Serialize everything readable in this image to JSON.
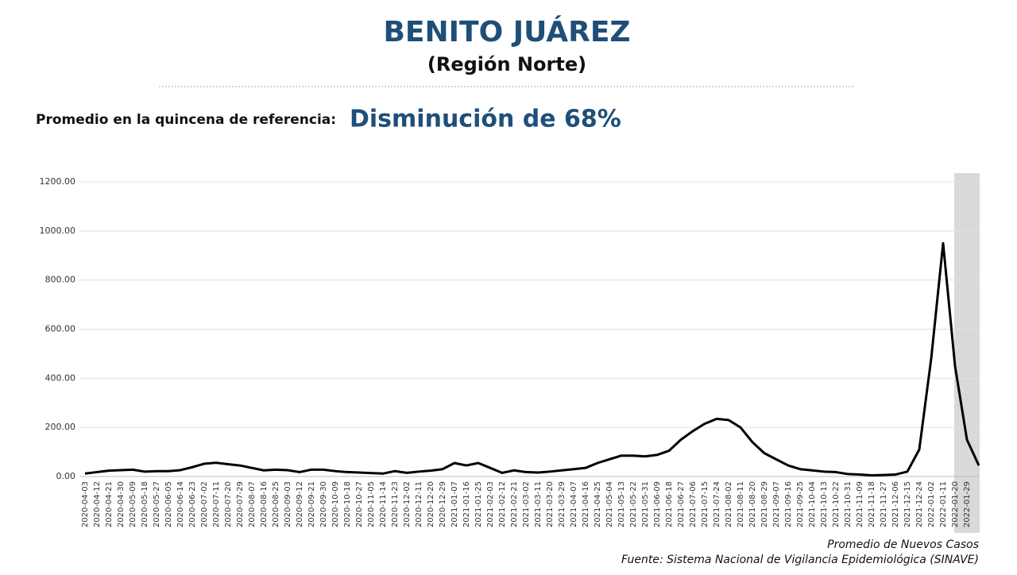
{
  "chart_data": {
    "type": "line",
    "title": "BENITO JUÁREZ",
    "subtitle": "(Región Norte)",
    "reference_label": "Promedio en la quincena de referencia:",
    "headline": "Disminución de 68%",
    "legend_label": "Promedio de Nuevos Casos",
    "source": "Fuente: Sistema Nacional de Vigilancia Epidemiológica (SINAVE)",
    "categories": [
      "2020-04-03",
      "2020-04-12",
      "2020-04-21",
      "2020-04-30",
      "2020-05-09",
      "2020-05-18",
      "2020-05-27",
      "2020-06-05",
      "2020-06-14",
      "2020-06-23",
      "2020-07-02",
      "2020-07-11",
      "2020-07-20",
      "2020-07-29",
      "2020-08-07",
      "2020-08-16",
      "2020-08-25",
      "2020-09-03",
      "2020-09-12",
      "2020-09-21",
      "2020-09-30",
      "2020-10-09",
      "2020-10-18",
      "2020-10-27",
      "2020-11-05",
      "2020-11-14",
      "2020-11-23",
      "2020-12-02",
      "2020-12-11",
      "2020-12-20",
      "2020-12-29",
      "2021-01-07",
      "2021-01-16",
      "2021-01-25",
      "2021-02-03",
      "2021-02-12",
      "2021-02-21",
      "2021-03-02",
      "2021-03-11",
      "2021-03-20",
      "2021-03-29",
      "2021-04-07",
      "2021-04-16",
      "2021-04-25",
      "2021-05-04",
      "2021-05-13",
      "2021-05-22",
      "2021-05-31",
      "2021-06-09",
      "2021-06-18",
      "2021-06-27",
      "2021-07-06",
      "2021-07-15",
      "2021-07-24",
      "2021-08-02",
      "2021-08-11",
      "2021-08-20",
      "2021-08-29",
      "2021-09-07",
      "2021-09-16",
      "2021-09-25",
      "2021-10-04",
      "2021-10-13",
      "2021-10-22",
      "2021-10-31",
      "2021-11-09",
      "2021-11-18",
      "2021-11-27",
      "2021-12-06",
      "2021-12-15",
      "2021-12-24",
      "2022-01-02",
      "2022-01-11",
      "2022-01-20",
      "2022-01-29",
      null
    ],
    "series": [
      {
        "name": "Promedio de Nuevos Casos",
        "color": "#000000",
        "values": [
          12,
          18,
          24,
          26,
          28,
          20,
          22,
          22,
          26,
          38,
          52,
          56,
          50,
          45,
          35,
          25,
          28,
          26,
          18,
          28,
          28,
          22,
          18,
          16,
          14,
          12,
          22,
          15,
          20,
          24,
          30,
          55,
          45,
          55,
          35,
          15,
          25,
          18,
          16,
          20,
          25,
          30,
          35,
          55,
          70,
          85,
          85,
          82,
          88,
          105,
          150,
          185,
          215,
          235,
          230,
          200,
          140,
          95,
          70,
          45,
          30,
          25,
          20,
          18,
          10,
          8,
          5,
          6,
          8,
          20,
          110,
          480,
          950,
          450,
          150,
          45
        ]
      }
    ],
    "ylim": [
      0,
      1200
    ],
    "yticks": [
      {
        "value": 0,
        "label": "0.00"
      },
      {
        "value": 200,
        "label": "200.00"
      },
      {
        "value": 400,
        "label": "400.00"
      },
      {
        "value": 600,
        "label": "600.00"
      },
      {
        "value": 800,
        "label": "800.00"
      },
      {
        "value": 1000,
        "label": "1000.00"
      },
      {
        "value": 1200,
        "label": "1200.00"
      }
    ],
    "grid": true
  }
}
